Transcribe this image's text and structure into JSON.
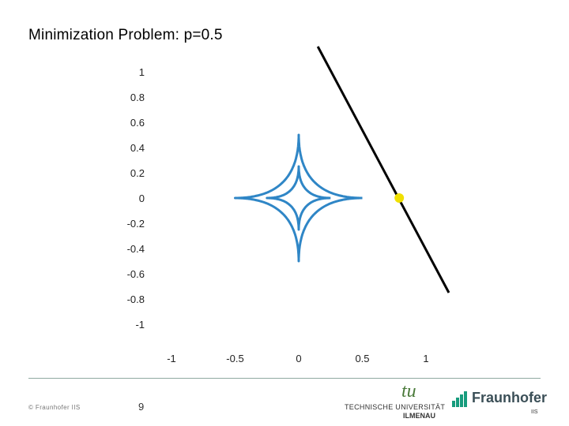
{
  "slide": {
    "title": "Minimization Problem: p=0.5",
    "page_number": "9",
    "copyright": "© Fraunhofer IIS"
  },
  "logos": {
    "tu": {
      "mark": "tu",
      "line1": "TECHNISCHE UNIVERSITÄT",
      "line2": "ILMENAU"
    },
    "fraunhofer": {
      "name": "Fraunhofer",
      "sub": "IIS"
    }
  },
  "colors": {
    "curve": "#2f86c6",
    "line": "#000000",
    "point": "#f0e000",
    "logo_green": "#4a7a3a",
    "fraunhofer_green": "#179c7d"
  },
  "chart_data": {
    "type": "line",
    "title": "",
    "xlabel": "",
    "ylabel": "",
    "xlim": [
      -1.2,
      1.2
    ],
    "ylim": [
      -1.1,
      1.1
    ],
    "xticks": [
      -1,
      -0.5,
      0,
      0.5,
      1
    ],
    "xtick_labels": [
      "-1",
      "-0.5",
      "0",
      "0.5",
      "1"
    ],
    "yticks": [
      1,
      0.8,
      0.6,
      0.4,
      0.2,
      0,
      -0.2,
      -0.4,
      -0.6,
      -0.8,
      -1
    ],
    "ytick_labels": [
      "1",
      "0.8",
      "0.6",
      "0.4",
      "0.2",
      "0",
      "-0.2",
      "-0.4",
      "-0.6",
      "-0.8",
      "-1"
    ],
    "grid": false,
    "series": [
      {
        "kind": "lp-ball",
        "p": 0.5,
        "radius": 0.5,
        "color": "#2f86c6"
      },
      {
        "kind": "lp-ball",
        "p": 0.5,
        "radius": 0.25,
        "color": "#2f86c6"
      },
      {
        "kind": "line",
        "x": [
          0.15,
          1.18
        ],
        "y": [
          1.2,
          -0.75
        ],
        "color": "#000000"
      },
      {
        "kind": "point",
        "x": 0.79,
        "y": 0.0,
        "color": "#f0e000"
      }
    ]
  }
}
